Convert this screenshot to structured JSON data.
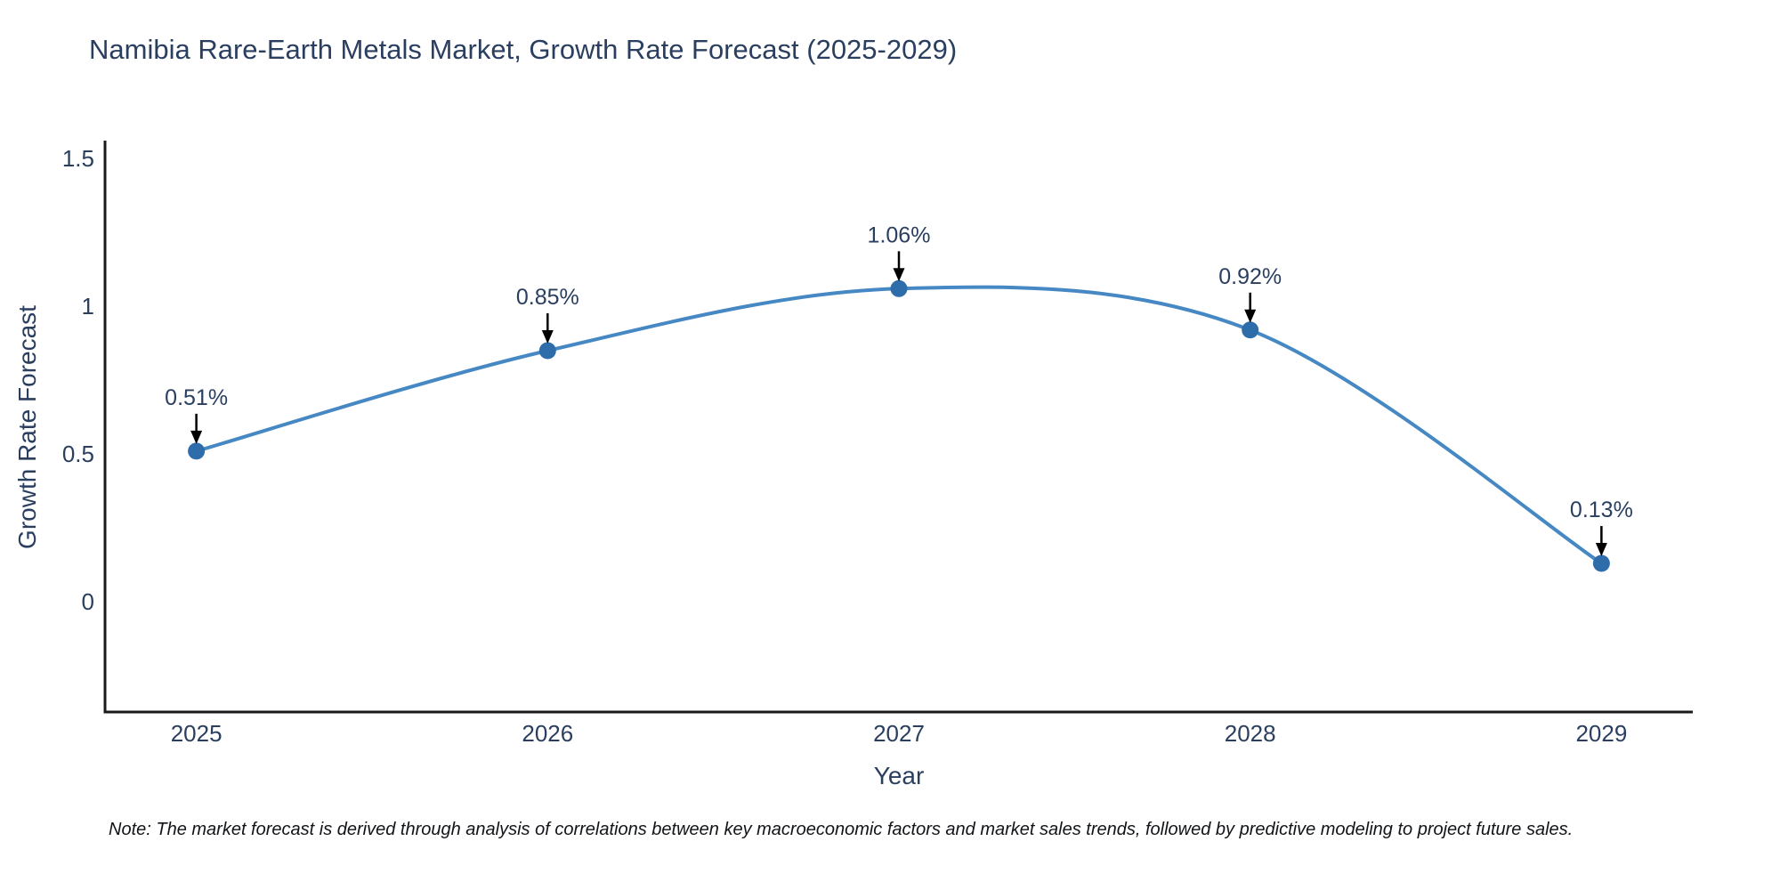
{
  "title": "Namibia Rare-Earth Metals Market, Growth Rate Forecast (2025-2029)",
  "note": "Note: The market forecast is derived through analysis of correlations between key macroeconomic factors and market sales trends, followed by predictive modeling to project future sales.",
  "chart_data": {
    "type": "line",
    "title": "Namibia Rare-Earth Metals Market, Growth Rate Forecast (2025-2029)",
    "xlabel": "Year",
    "ylabel": "Growth Rate Forecast",
    "x": [
      2025,
      2026,
      2027,
      2028,
      2029
    ],
    "y": [
      0.51,
      0.85,
      1.06,
      0.92,
      0.13
    ],
    "point_labels": [
      "0.51%",
      "0.85%",
      "1.06%",
      "0.92%",
      "0.13%"
    ],
    "x_tick_labels": [
      "2025",
      "2026",
      "2027",
      "2028",
      "2029"
    ],
    "x_tick_values": [
      2025,
      2026,
      2027,
      2028,
      2029
    ],
    "y_tick_labels": [
      "0",
      "0.5",
      "1",
      "1.5"
    ],
    "y_tick_values": [
      0,
      0.5,
      1,
      1.5
    ],
    "x_range": [
      2024.74,
      2029.26
    ],
    "y_range": [
      -0.373,
      1.561
    ],
    "line_shape": "spline",
    "grid": false,
    "legend": false,
    "annotation_arrows": true,
    "colors": {
      "line": "#4688c3",
      "marker": "#2e6daa",
      "text": "#2a3f5f",
      "axis_line": "#1a1a1a",
      "arrow": "#000000"
    }
  }
}
